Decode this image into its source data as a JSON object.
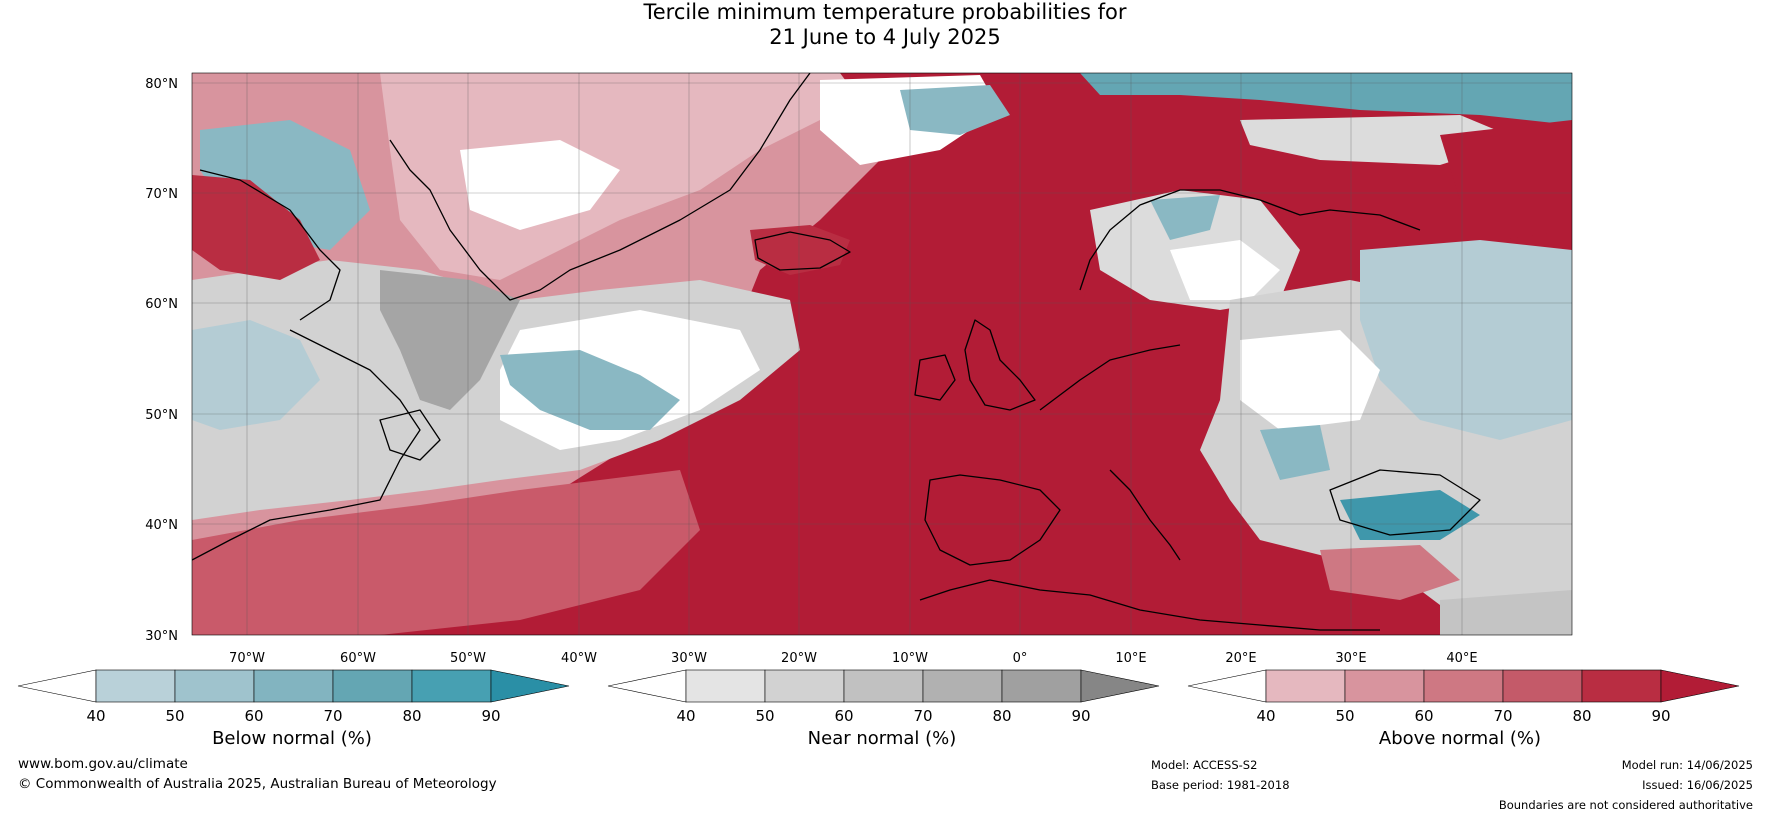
{
  "title": {
    "line1": "Tercile minimum temperature probabilities for",
    "line2": "21 June to 4 July 2025"
  },
  "axes": {
    "lat_labels": [
      "80°N",
      "70°N",
      "60°N",
      "50°N",
      "40°N",
      "30°N"
    ],
    "lon_labels": [
      "70°W",
      "60°W",
      "50°W",
      "40°W",
      "30°W",
      "20°W",
      "10°W",
      "0°",
      "10°E",
      "20°E",
      "30°E",
      "40°E"
    ]
  },
  "colorbars": [
    {
      "label": "Below normal (%)",
      "ticks": [
        "40",
        "50",
        "60",
        "70",
        "80",
        "90"
      ],
      "colors": [
        "#ffffff",
        "#b9d1d9",
        "#9fc3cd",
        "#82b4c0",
        "#64a6b3",
        "#47a0b2",
        "#2a8fa6"
      ]
    },
    {
      "label": "Near normal (%)",
      "ticks": [
        "40",
        "50",
        "60",
        "70",
        "80",
        "90"
      ],
      "colors": [
        "#ffffff",
        "#e4e4e4",
        "#d2d2d2",
        "#c1c1c1",
        "#b1b1b1",
        "#a0a0a0",
        "#868686"
      ]
    },
    {
      "label": "Above normal (%)",
      "ticks": [
        "40",
        "50",
        "60",
        "70",
        "80",
        "90"
      ],
      "colors": [
        "#ffffff",
        "#e5b8bf",
        "#d8949e",
        "#ce7883",
        "#c45a69",
        "#b92d42",
        "#b21c36"
      ]
    }
  ],
  "footer": {
    "website": "www.bom.gov.au/climate",
    "copyright": "© Commonwealth of Australia 2025, Australian Bureau of Meteorology",
    "model": "Model: ACCESS-S2",
    "base_period": "Base period: 1981-2018",
    "model_run": "Model run: 14/06/2025",
    "issued": "Issued: 16/06/2025",
    "disclaimer": "Boundaries are not considered authoritative"
  },
  "palette": {
    "above_strong": "#b21c36",
    "above_mid": "#c95a6a",
    "above_light": "#dea3ab",
    "near_light": "#dcdcdc",
    "near_mid": "#c4c4c4",
    "near_dark": "#a5a5a5",
    "below_light": "#b4ccd4",
    "below_mid": "#8ab8c3",
    "below_dark": "#3f97ab",
    "white": "#ffffff",
    "coast": "#000000",
    "border": "#7a7a7a",
    "grid": "#555555"
  }
}
